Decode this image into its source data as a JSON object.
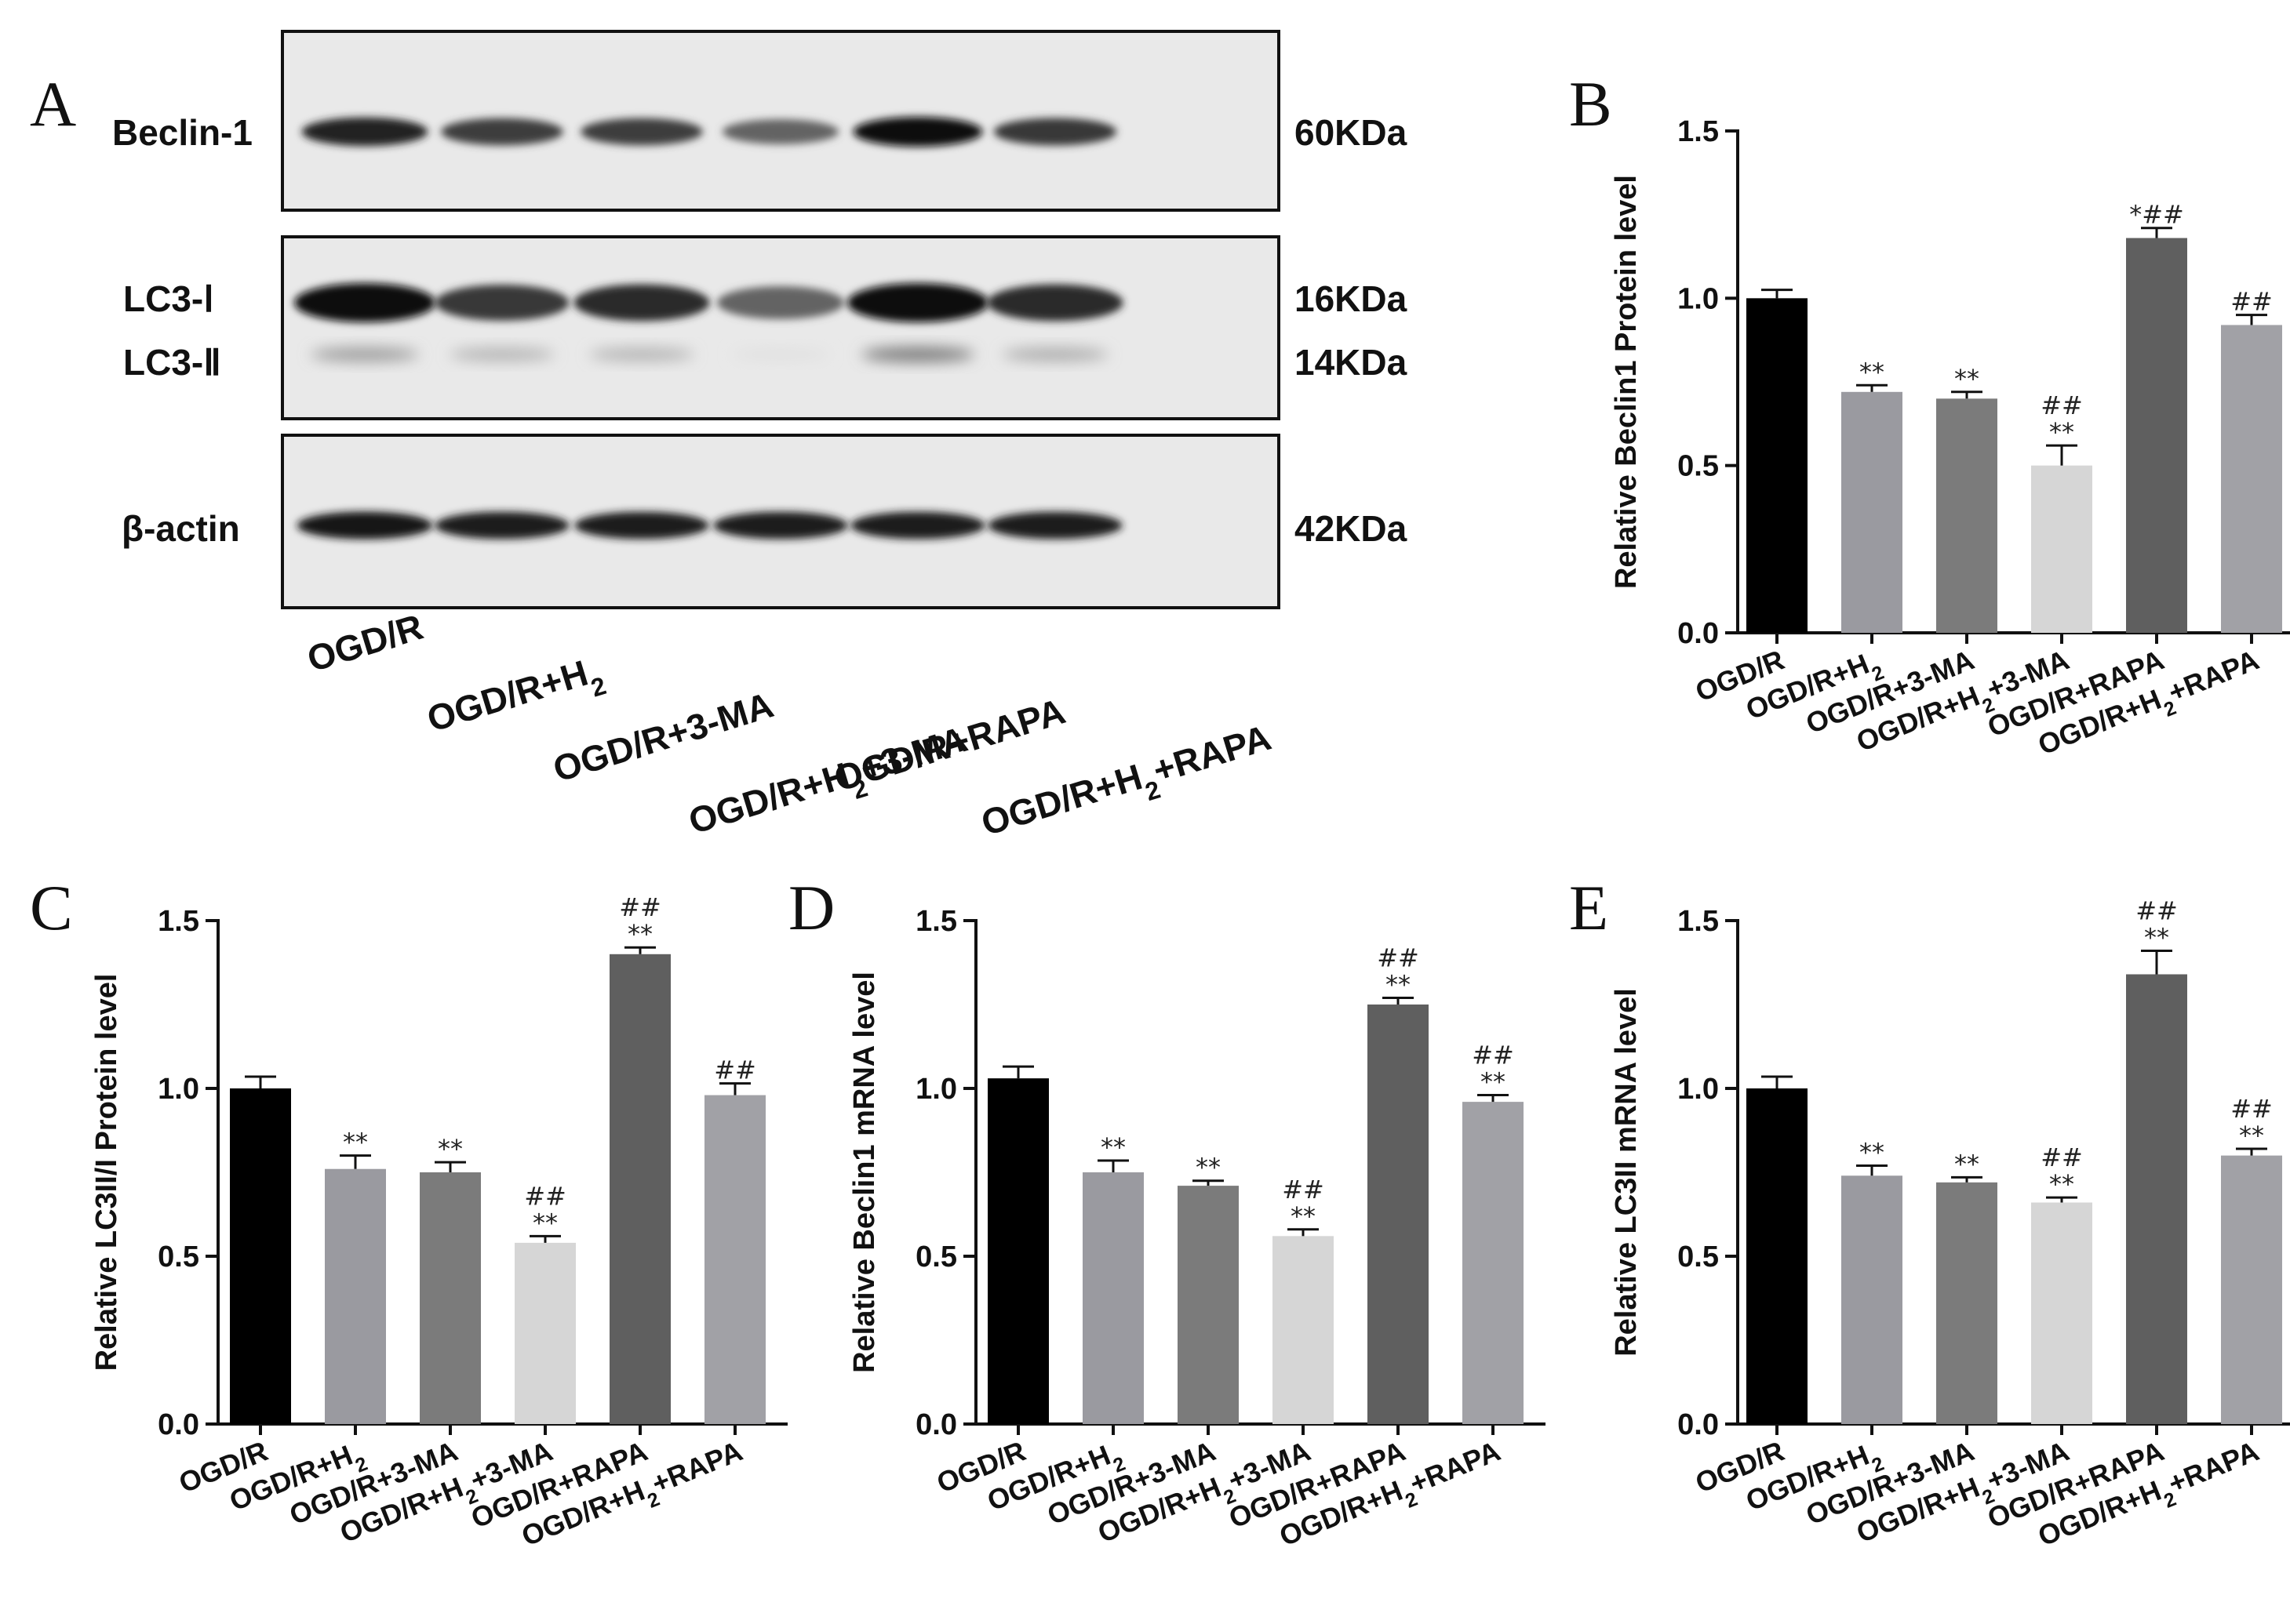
{
  "blot": {
    "letter": "A",
    "lanes": [
      "OGD/R",
      "OGD/R+H2",
      "OGD/R+3-MA",
      "OGD/R+H2+3-MA",
      "OGD/R+RAPA",
      "OGD/R+H2+RAPA"
    ],
    "proteins": [
      {
        "name": "Beclin-1",
        "size": "60KDa"
      },
      {
        "name": "LC3-Ⅰ",
        "size": "16KDa"
      },
      {
        "name": "LC3-Ⅱ",
        "size": "14KDa"
      },
      {
        "name": "β-actin",
        "size": "42KDa"
      }
    ],
    "band_intensity": {
      "beclin1": [
        0.9,
        0.78,
        0.78,
        0.6,
        1.0,
        0.8
      ],
      "lc3_1": [
        1.0,
        0.8,
        0.85,
        0.6,
        1.0,
        0.85
      ],
      "lc3_2": [
        0.35,
        0.25,
        0.25,
        0.05,
        0.5,
        0.28
      ],
      "actin": [
        0.95,
        0.92,
        0.92,
        0.92,
        0.92,
        0.92
      ]
    }
  },
  "bar_colors": [
    "#000000",
    "#9a9aa0",
    "#7b7b7b",
    "#d6d6d6",
    "#5f5f5f",
    "#a1a1a6"
  ],
  "chart_data": [
    {
      "letter": "B",
      "type": "bar",
      "categories": [
        "OGD/R",
        "OGD/R+H2",
        "OGD/R+3-MA",
        "OGD/R+H2+3-MA",
        "OGD/R+RAPA",
        "OGD/R+H2+RAPA"
      ],
      "values": [
        1.0,
        0.72,
        0.7,
        0.5,
        1.18,
        0.92
      ],
      "errors": [
        0.025,
        0.02,
        0.02,
        0.06,
        0.03,
        0.03
      ],
      "significance": [
        [],
        [
          "**"
        ],
        [
          "**"
        ],
        [
          "**",
          "##"
        ],
        [
          "*##"
        ],
        [
          "##"
        ]
      ],
      "ylabel": "Relative Beclin1 Protein level",
      "ylim": [
        0,
        1.5
      ],
      "yticks": [
        "0.0",
        "0.5",
        "1.0",
        "1.5"
      ]
    },
    {
      "letter": "C",
      "type": "bar",
      "categories": [
        "OGD/R",
        "OGD/R+H2",
        "OGD/R+3-MA",
        "OGD/R+H2+3-MA",
        "OGD/R+RAPA",
        "OGD/R+H2+RAPA"
      ],
      "values": [
        1.0,
        0.76,
        0.75,
        0.54,
        1.4,
        0.98
      ],
      "errors": [
        0.035,
        0.04,
        0.03,
        0.02,
        0.02,
        0.035
      ],
      "significance": [
        [],
        [
          "**"
        ],
        [
          "**"
        ],
        [
          "**",
          "##"
        ],
        [
          "**",
          "##"
        ],
        [
          "##"
        ]
      ],
      "ylabel": "Relative LC3II/I Protein level",
      "ylim": [
        0,
        1.5
      ],
      "yticks": [
        "0.0",
        "0.5",
        "1.0",
        "1.5"
      ]
    },
    {
      "letter": "D",
      "type": "bar",
      "categories": [
        "OGD/R",
        "OGD/R+H2",
        "OGD/R+3-MA",
        "OGD/R+H2+3-MA",
        "OGD/R+RAPA",
        "OGD/R+H2+RAPA"
      ],
      "values": [
        1.03,
        0.75,
        0.71,
        0.56,
        1.25,
        0.96
      ],
      "errors": [
        0.035,
        0.035,
        0.015,
        0.02,
        0.02,
        0.02
      ],
      "significance": [
        [],
        [
          "**"
        ],
        [
          "**"
        ],
        [
          "**",
          "##"
        ],
        [
          "**",
          "##"
        ],
        [
          "**",
          "##"
        ]
      ],
      "ylabel": "Relative Beclin1 mRNA level",
      "ylim": [
        0,
        1.5
      ],
      "yticks": [
        "0.0",
        "0.5",
        "1.0",
        "1.5"
      ]
    },
    {
      "letter": "E",
      "type": "bar",
      "categories": [
        "OGD/R",
        "OGD/R+H2",
        "OGD/R+3-MA",
        "OGD/R+H2+3-MA",
        "OGD/R+RAPA",
        "OGD/R+H2+RAPA"
      ],
      "values": [
        1.0,
        0.74,
        0.72,
        0.66,
        1.34,
        0.8
      ],
      "errors": [
        0.035,
        0.03,
        0.015,
        0.015,
        0.07,
        0.02
      ],
      "significance": [
        [],
        [
          "**"
        ],
        [
          "**"
        ],
        [
          "**",
          "##"
        ],
        [
          "**",
          "##"
        ],
        [
          "**",
          "##"
        ]
      ],
      "ylabel": "Relative LC3II mRNA level",
      "ylim": [
        0,
        1.5
      ],
      "yticks": [
        "0.0",
        "0.5",
        "1.0",
        "1.5"
      ]
    }
  ]
}
